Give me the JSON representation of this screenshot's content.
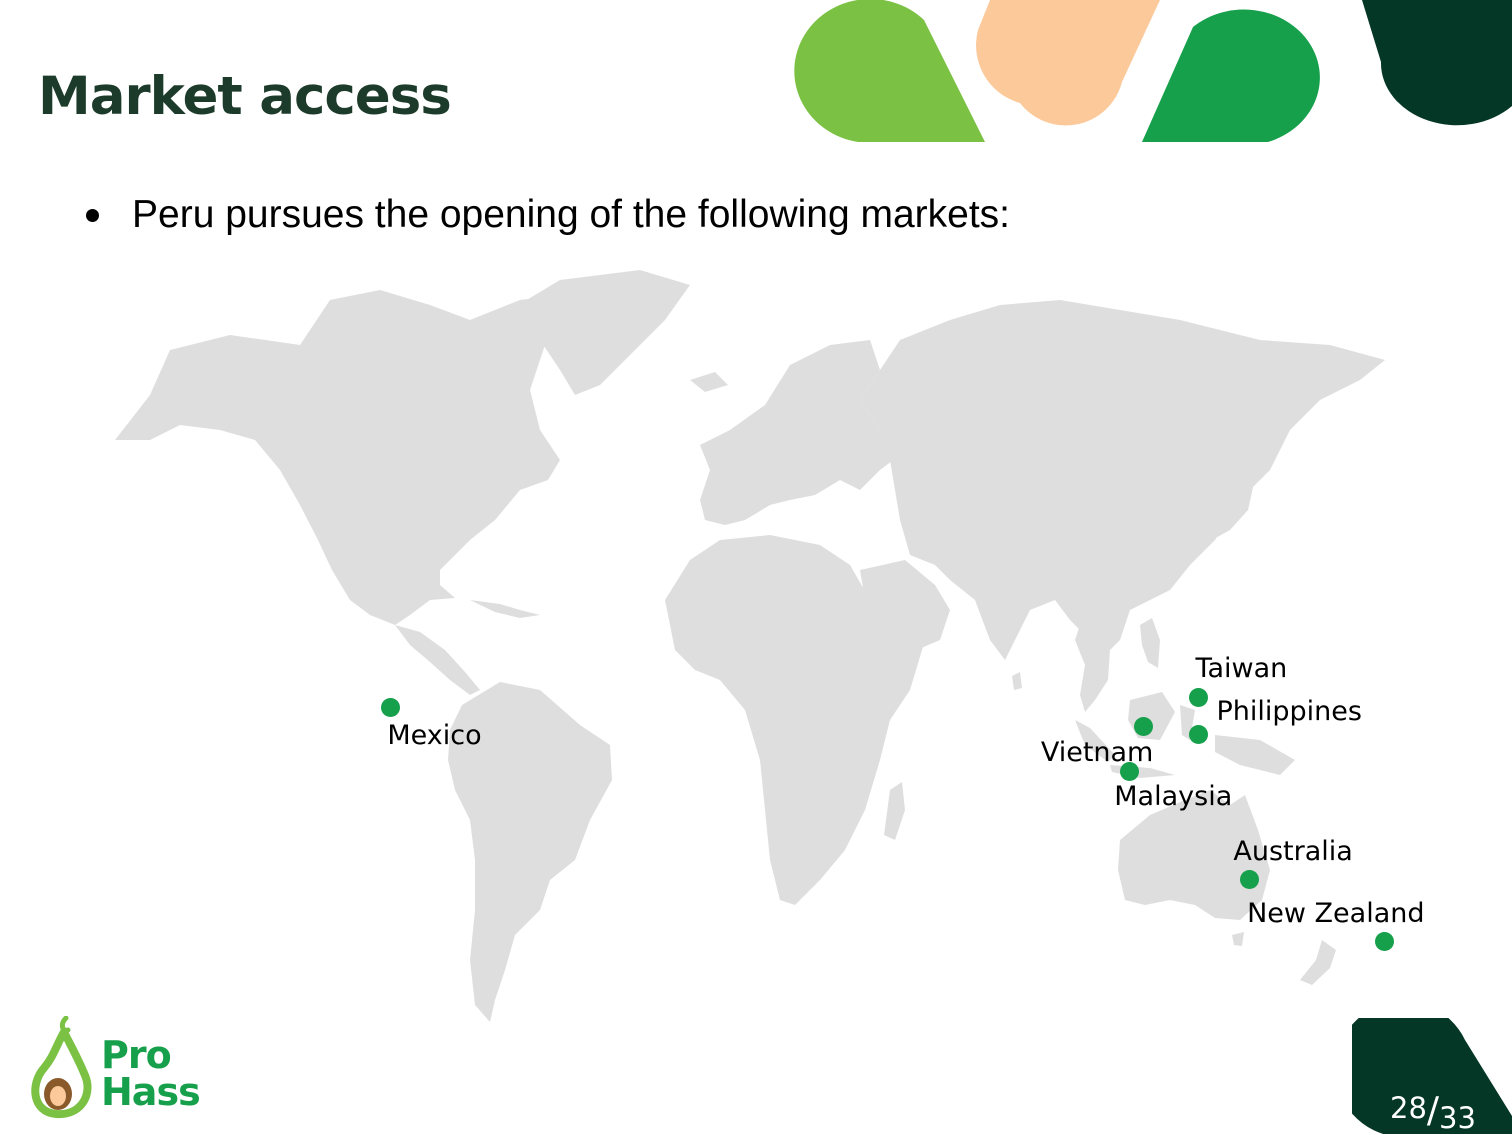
{
  "title": "Market access",
  "bullet": "Peru pursues the opening of the following markets:",
  "map": {
    "markers": [
      {
        "label": "Mexico",
        "lon": -101,
        "lat": 21
      },
      {
        "label": "Taiwan",
        "lon": 121,
        "lat": 23.7
      },
      {
        "label": "Philippines",
        "lon": 121,
        "lat": 14
      },
      {
        "label": "Vietnam",
        "lon": 106,
        "lat": 16
      },
      {
        "label": "Malaysia",
        "lon": 102,
        "lat": 4
      },
      {
        "label": "Australia",
        "lon": 135,
        "lat": -25
      },
      {
        "label": "New Zealand",
        "lon": 172,
        "lat": -40
      }
    ]
  },
  "logo": {
    "line1": "Pro",
    "line2": "Hass"
  },
  "page": {
    "current": "28",
    "separator": "/",
    "total": "33"
  },
  "colors": {
    "land": "#dedede",
    "marker": "#16a04b",
    "title_text": "#1d3b2a",
    "brand_lime": "#7bc143",
    "brand_peach": "#fcc99b",
    "brand_green": "#16a04b",
    "brand_dark": "#053726"
  }
}
